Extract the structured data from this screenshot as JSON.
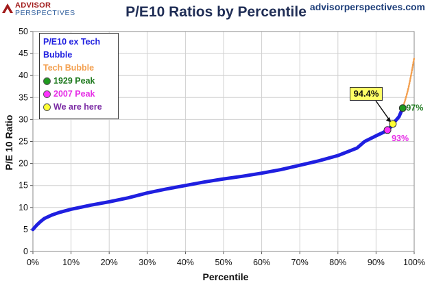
{
  "brand": {
    "line1": "ADVISOR",
    "line2": "PERSPECTIVES"
  },
  "site_url": "advisorperspectives.com",
  "legend": [
    {
      "label": "P/E10 ex Tech Bubble",
      "color": "#1f1fe0",
      "marker": "none"
    },
    {
      "label": "Tech Bubble",
      "color": "#f3a050",
      "marker": "none"
    },
    {
      "label": "1929 Peak",
      "color": "#1f7a1f",
      "marker": "#1f9a1f"
    },
    {
      "label": "2007 Peak",
      "color": "#e62ee6",
      "marker": "#ff33ff"
    },
    {
      "label": "We are here",
      "color": "#7a2aa3",
      "marker": "#ffff33"
    }
  ],
  "chart_data": {
    "type": "line",
    "title": "P/E10 Ratios by Percentile",
    "xlabel": "Percentile",
    "ylabel": "P/E 10 Ratio",
    "xlim": [
      0,
      100
    ],
    "ylim": [
      0,
      50
    ],
    "x_ticks": [
      "0%",
      "10%",
      "20%",
      "30%",
      "40%",
      "50%",
      "60%",
      "70%",
      "80%",
      "90%",
      "100%"
    ],
    "y_ticks": [
      "0",
      "5",
      "10",
      "15",
      "20",
      "25",
      "30",
      "35",
      "40",
      "45",
      "50"
    ],
    "grid": true,
    "series": [
      {
        "name": "P/E10 ex Tech Bubble",
        "color": "#1f1fe0",
        "x": [
          0,
          1,
          2,
          3,
          5,
          7,
          10,
          15,
          20,
          25,
          30,
          35,
          40,
          45,
          50,
          55,
          60,
          65,
          70,
          75,
          80,
          85,
          87,
          90,
          92,
          93,
          94,
          94.4,
          95,
          96,
          97
        ],
        "y": [
          5.0,
          6.0,
          6.8,
          7.5,
          8.3,
          8.9,
          9.6,
          10.5,
          11.3,
          12.2,
          13.3,
          14.2,
          15.0,
          15.8,
          16.5,
          17.1,
          17.8,
          18.6,
          19.6,
          20.6,
          21.8,
          23.5,
          25.0,
          26.3,
          27.1,
          27.7,
          28.4,
          29.0,
          29.6,
          30.6,
          32.6
        ]
      },
      {
        "name": "Tech Bubble",
        "color": "#f3a050",
        "x": [
          97,
          97.5,
          98,
          98.5,
          99,
          99.5,
          100
        ],
        "y": [
          32.6,
          34.0,
          35.5,
          37.2,
          39.2,
          41.5,
          44.0
        ]
      }
    ],
    "markers": [
      {
        "name": "1929 Peak",
        "x": 97,
        "y": 32.6,
        "color": "#1f9a1f",
        "label": "97%",
        "label_color": "#1f7a1f"
      },
      {
        "name": "2007 Peak",
        "x": 93,
        "y": 27.6,
        "color": "#ff33ff",
        "label": "93%",
        "label_color": "#e62ee6"
      },
      {
        "name": "We are here",
        "x": 94.4,
        "y": 29.0,
        "color": "#ffff33",
        "label": "94.4%",
        "label_color": "#111111"
      }
    ]
  }
}
